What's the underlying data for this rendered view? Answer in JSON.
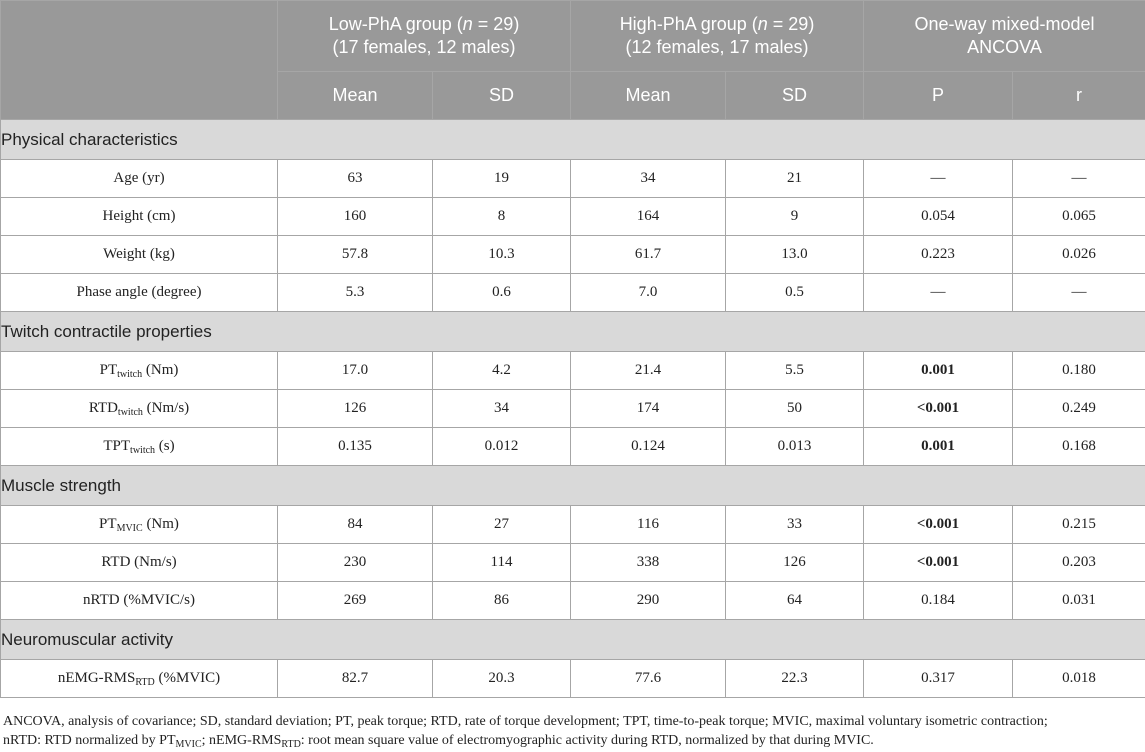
{
  "header": {
    "group1": {
      "title": "Low-PhA group (",
      "n_symbol": "n",
      "count": " = 29)",
      "subtitle": "(17 females, 12 males)"
    },
    "group2": {
      "title": "High-PhA group (",
      "n_symbol": "n",
      "count": " = 29)",
      "subtitle": "(12 females, 17 males)"
    },
    "group3": {
      "line1": "One-way mixed-model",
      "line2": "ANCOVA"
    },
    "subheaders": [
      "Mean",
      "SD",
      "Mean",
      "SD",
      "P",
      "r"
    ]
  },
  "sections": [
    {
      "title": "Physical characteristics",
      "rows": [
        {
          "label": "Age (yr)",
          "sub": "",
          "unit": "",
          "values": [
            "63",
            "19",
            "34",
            "21",
            "—",
            "—"
          ],
          "p_bold": false
        },
        {
          "label": "Height (cm)",
          "sub": "",
          "unit": "",
          "values": [
            "160",
            "8",
            "164",
            "9",
            "0.054",
            "0.065"
          ],
          "p_bold": false
        },
        {
          "label": "Weight (kg)",
          "sub": "",
          "unit": "",
          "values": [
            "57.8",
            "10.3",
            "61.7",
            "13.0",
            "0.223",
            "0.026"
          ],
          "p_bold": false
        },
        {
          "label": "Phase angle (degree)",
          "sub": "",
          "unit": "",
          "values": [
            "5.3",
            "0.6",
            "7.0",
            "0.5",
            "—",
            "—"
          ],
          "p_bold": false
        }
      ]
    },
    {
      "title": "Twitch contractile properties",
      "rows": [
        {
          "label": "PT",
          "sub": "twitch",
          "unit": " (Nm)",
          "values": [
            "17.0",
            "4.2",
            "21.4",
            "5.5",
            "0.001",
            "0.180"
          ],
          "p_bold": true
        },
        {
          "label": "RTD",
          "sub": "twitch",
          "unit": " (Nm/s)",
          "values": [
            "126",
            "34",
            "174",
            "50",
            "<0.001",
            "0.249"
          ],
          "p_bold": true
        },
        {
          "label": "TPT",
          "sub": "twitch",
          "unit": " (s)",
          "values": [
            "0.135",
            "0.012",
            "0.124",
            "0.013",
            "0.001",
            "0.168"
          ],
          "p_bold": true
        }
      ]
    },
    {
      "title": "Muscle strength",
      "rows": [
        {
          "label": "PT",
          "sub": "MVIC",
          "unit": " (Nm)",
          "values": [
            "84",
            "27",
            "116",
            "33",
            "<0.001",
            "0.215"
          ],
          "p_bold": true
        },
        {
          "label": "RTD (Nm/s)",
          "sub": "",
          "unit": "",
          "values": [
            "230",
            "114",
            "338",
            "126",
            "<0.001",
            "0.203"
          ],
          "p_bold": true
        },
        {
          "label": "nRTD (%MVIC/s)",
          "sub": "",
          "unit": "",
          "values": [
            "269",
            "86",
            "290",
            "64",
            "0.184",
            "0.031"
          ],
          "p_bold": false
        }
      ]
    },
    {
      "title": "Neuromuscular activity",
      "rows": [
        {
          "label": "nEMG-RMS",
          "sub": "RTD",
          "unit": " (%MVIC)",
          "values": [
            "82.7",
            "20.3",
            "77.6",
            "22.3",
            "0.317",
            "0.018"
          ],
          "p_bold": false
        }
      ]
    }
  ],
  "footnote": {
    "line1": "ANCOVA, analysis of covariance; SD, standard deviation; PT, peak torque; RTD, rate of torque development; TPT, time-to-peak torque; MVIC, maximal voluntary isometric contraction;",
    "line2_a": "nRTD: RTD normalized by PT",
    "line2_sub1": "MVIC",
    "line2_b": "; nEMG-RMS",
    "line2_sub2": "RTD",
    "line2_c": ": root mean square value of electromyographic activity during RTD, normalized by that during MVIC."
  }
}
